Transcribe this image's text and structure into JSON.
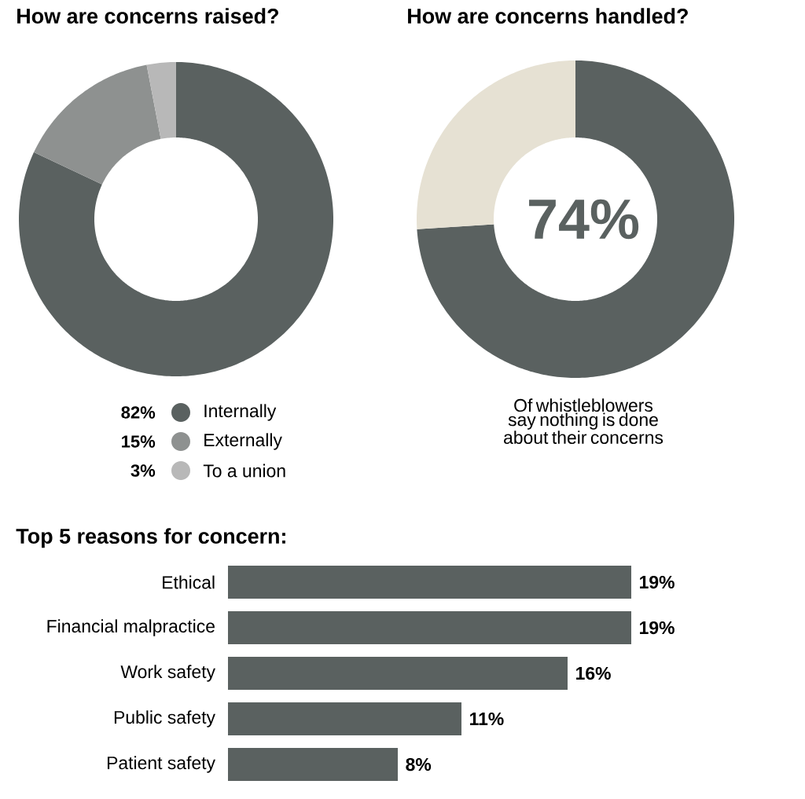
{
  "chart_data": [
    {
      "type": "donut",
      "title": "How are concerns raised?",
      "categories": [
        "Internally",
        "Externally",
        "To a union"
      ],
      "values": [
        82,
        15,
        3
      ],
      "colors": [
        "#5a6160",
        "#8e9190",
        "#b8b8b8"
      ],
      "value_labels": [
        "82%",
        "15%",
        "3%"
      ],
      "legend": "bottom"
    },
    {
      "type": "donut",
      "title": "How are concerns handled?",
      "categories": [
        null,
        null
      ],
      "values": [
        74,
        26
      ],
      "colors": [
        "#5a6160",
        "#e6e1d3"
      ],
      "value_labels": [
        "74%",
        null
      ],
      "annotations": [
        "Of whistleblowers say nothing is done about their concerns"
      ]
    },
    {
      "type": "bar",
      "orientation": "horizontal",
      "title": "Top 5 reasons for concern:",
      "categories": [
        "Ethical",
        "Financial malpractice",
        "Work safety",
        "Public safety",
        "Patient safety"
      ],
      "values": [
        19,
        19,
        16,
        11,
        8
      ],
      "color": "#5a6160",
      "value_labels": [
        "19%",
        "19%",
        "16%",
        "11%",
        "8%"
      ]
    }
  ]
}
